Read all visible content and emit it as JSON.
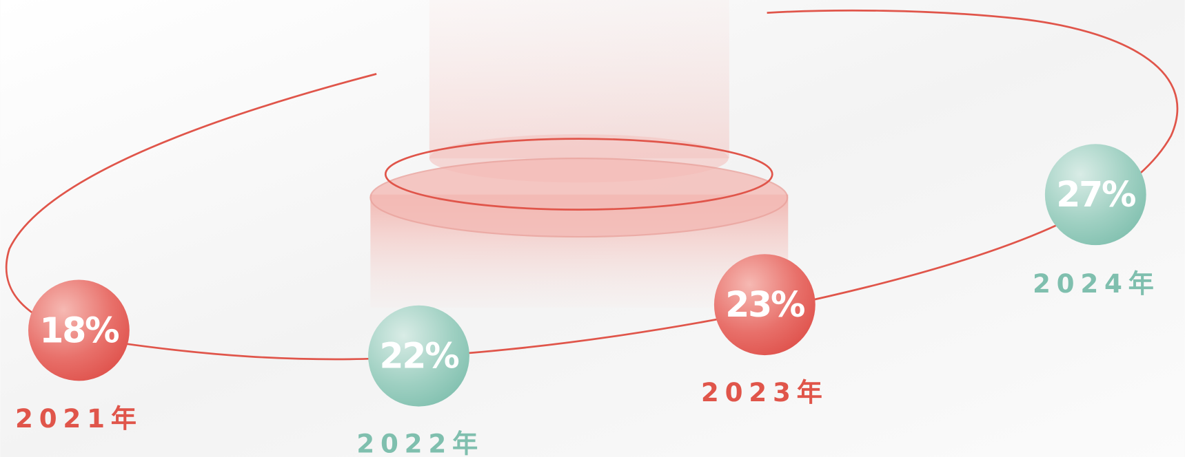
{
  "items": [
    {
      "value": "18%",
      "label": "2021年"
    },
    {
      "value": "22%",
      "label": "2022年"
    },
    {
      "value": "23%",
      "label": "2023年"
    },
    {
      "value": "27%",
      "label": "2024年"
    }
  ]
}
